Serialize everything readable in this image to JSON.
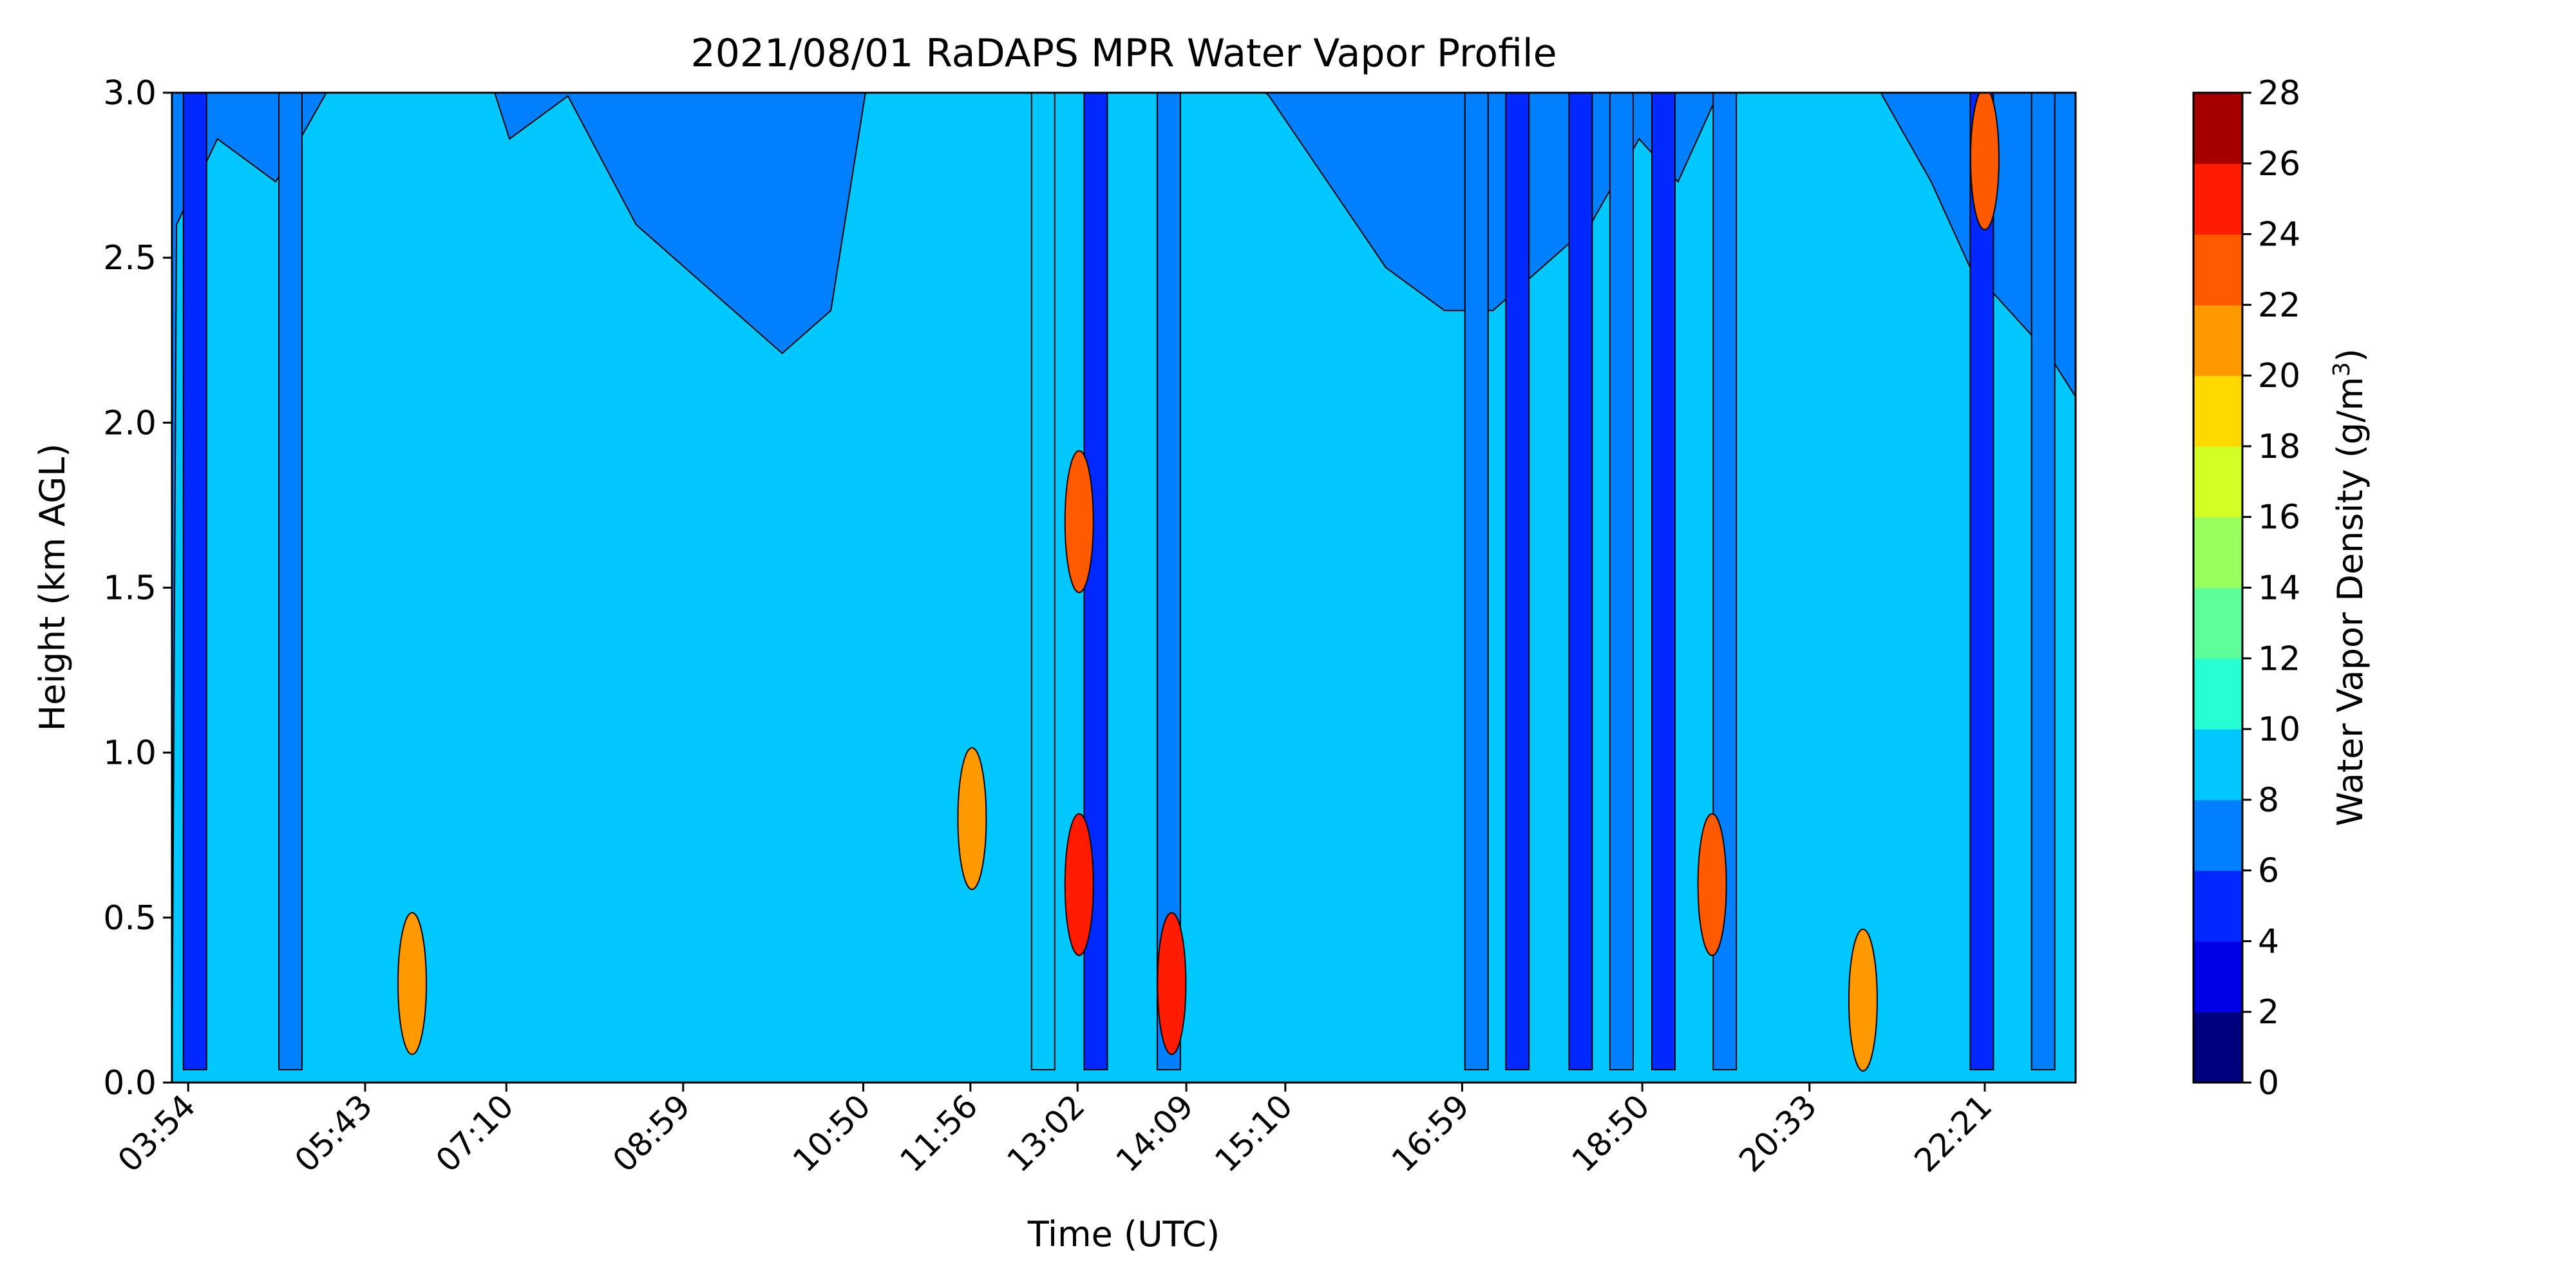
{
  "chart_data": {
    "type": "heatmap",
    "subtype": "filled-contour",
    "title": "2021/08/01 RaDAPS MPR Water Vapor Profile",
    "xlabel": "Time (UTC)",
    "ylabel": "Height (km AGL)",
    "x_ticks": [
      "03:54",
      "05:43",
      "07:10",
      "08:59",
      "10:50",
      "11:56",
      "13:02",
      "14:09",
      "15:10",
      "16:59",
      "18:50",
      "20:33",
      "22:21"
    ],
    "x_tick_hours": [
      3.9,
      5.717,
      7.167,
      8.983,
      10.833,
      11.933,
      13.033,
      14.15,
      15.167,
      16.983,
      18.833,
      20.55,
      22.35
    ],
    "xlim": [
      3.733,
      23.283
    ],
    "y_ticks": [
      "0.0",
      "0.5",
      "1.0",
      "1.5",
      "2.0",
      "2.5",
      "3.0"
    ],
    "ylim": [
      0,
      3.0
    ],
    "colorbar": {
      "label_prefix": "Water Vapor Density (g/m",
      "label_sup": "3",
      "label_suffix": ")",
      "ticks": [
        "0",
        "2",
        "4",
        "6",
        "8",
        "10",
        "12",
        "14",
        "16",
        "18",
        "20",
        "22",
        "24",
        "26",
        "28"
      ],
      "levels": [
        0,
        2,
        4,
        6,
        8,
        10,
        12,
        14,
        16,
        18,
        20,
        22,
        24,
        26,
        28
      ],
      "colors": [
        "#00007f",
        "#0000e6",
        "#0028ff",
        "#0080ff",
        "#00c8ff",
        "#26ffd1",
        "#5eff98",
        "#98ff5e",
        "#d1ff26",
        "#ffd800",
        "#ff9900",
        "#ff5a00",
        "#ff1c00",
        "#a40000"
      ]
    },
    "boundary_heights_km": [
      0.03,
      0.2,
      0.45,
      0.9,
      1.7,
      2.6
    ],
    "profile": {
      "hours": [
        3.78,
        4.2,
        4.8,
        5.3,
        5.72,
        6.1,
        6.5,
        7.2,
        7.8,
        8.5,
        9.0,
        9.5,
        10.0,
        10.5,
        10.85,
        11.25,
        11.6,
        11.95,
        12.4,
        12.8,
        13.2,
        13.55,
        14.0,
        14.5,
        15.0,
        15.6,
        16.2,
        16.8,
        17.3,
        17.8,
        18.3,
        18.8,
        19.2,
        19.6,
        20.0,
        20.4,
        20.8,
        21.3,
        21.8,
        22.2,
        22.6,
        23.0,
        23.28
      ],
      "values": [
        1.0,
        1.1,
        1.05,
        1.15,
        1.25,
        1.5,
        1.45,
        1.1,
        1.15,
        1.0,
        0.95,
        0.9,
        0.85,
        0.9,
        1.15,
        1.35,
        1.55,
        1.6,
        1.45,
        1.3,
        1.25,
        1.35,
        1.3,
        1.2,
        1.15,
        1.05,
        0.95,
        0.9,
        0.9,
        0.95,
        1.0,
        1.1,
        1.05,
        1.15,
        1.2,
        1.3,
        1.3,
        1.15,
        1.05,
        0.95,
        0.9,
        0.85,
        0.8
      ]
    },
    "dry_streaks": [
      {
        "hour": 3.97,
        "level": 2
      },
      {
        "hour": 4.95,
        "level": 3
      },
      {
        "hour": 12.68,
        "level": 4
      },
      {
        "hour": 13.22,
        "level": 2
      },
      {
        "hour": 13.97,
        "level": 3
      },
      {
        "hour": 17.13,
        "level": 3
      },
      {
        "hour": 17.55,
        "level": 2
      },
      {
        "hour": 18.2,
        "level": 2
      },
      {
        "hour": 18.62,
        "level": 3
      },
      {
        "hour": 19.05,
        "level": 2
      },
      {
        "hour": 19.68,
        "level": 3
      },
      {
        "hour": 22.32,
        "level": 2
      },
      {
        "hour": 22.95,
        "level": 3
      }
    ],
    "moist_spots": [
      {
        "hour": 11.95,
        "height": 0.8,
        "level": 10
      },
      {
        "hour": 13.05,
        "height": 0.6,
        "level": 12
      },
      {
        "hour": 13.05,
        "height": 1.7,
        "level": 11
      },
      {
        "hour": 14.0,
        "height": 0.3,
        "level": 12
      },
      {
        "hour": 6.2,
        "height": 0.3,
        "level": 10
      },
      {
        "hour": 19.55,
        "height": 0.6,
        "level": 11
      },
      {
        "hour": 21.1,
        "height": 0.25,
        "level": 10
      },
      {
        "hour": 22.35,
        "height": 2.8,
        "level": 11
      }
    ]
  }
}
